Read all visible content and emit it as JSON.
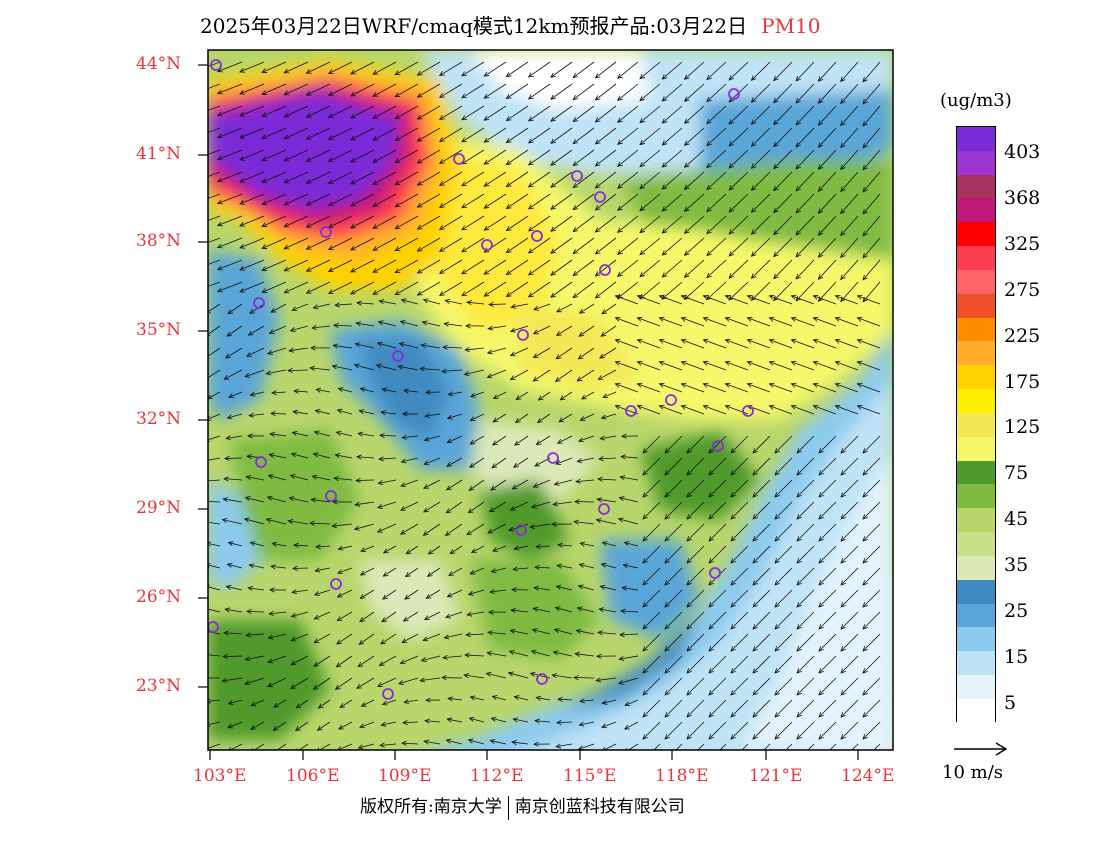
{
  "title": {
    "text": "2025年03月22日WRF/cmaq模式12km预报产品:03月22日",
    "pollutant": "PM10"
  },
  "map": {
    "lon_labels": [
      "103°E",
      "106°E",
      "109°E",
      "112°E",
      "115°E",
      "118°E",
      "121°E",
      "124°E"
    ],
    "lat_labels": [
      "44°N",
      "41°N",
      "38°N",
      "35°N",
      "32°N",
      "29°N",
      "26°N",
      "23°N"
    ],
    "lon_range": [
      103,
      124
    ],
    "lat_range": [
      21,
      44.5
    ]
  },
  "legend": {
    "unit": "(ug/m3)",
    "labels": [
      "403",
      "368",
      "325",
      "275",
      "225",
      "175",
      "125",
      "75",
      "45",
      "35",
      "25",
      "15",
      "5"
    ],
    "colors": [
      "#7b2ad8",
      "#9a35d0",
      "#a8325e",
      "#c01878",
      "#ff0000",
      "#ff3c50",
      "#ff6464",
      "#f0502a",
      "#ff8c00",
      "#ffad2a",
      "#ffd200",
      "#ffee00",
      "#f4e857",
      "#f4f86a",
      "#4f9a2b",
      "#7fbb42",
      "#b8d66b",
      "#c8e08a",
      "#dbe9b8",
      "#3f8ac0",
      "#5aa6d8",
      "#8ccaee",
      "#bfe3f7",
      "#e2f3fc",
      "#ffffff"
    ],
    "wind_ref": "10 m/s"
  },
  "copyright": {
    "left": "版权所有:南京大学",
    "right": "南京创蓝科技有限公司"
  }
}
